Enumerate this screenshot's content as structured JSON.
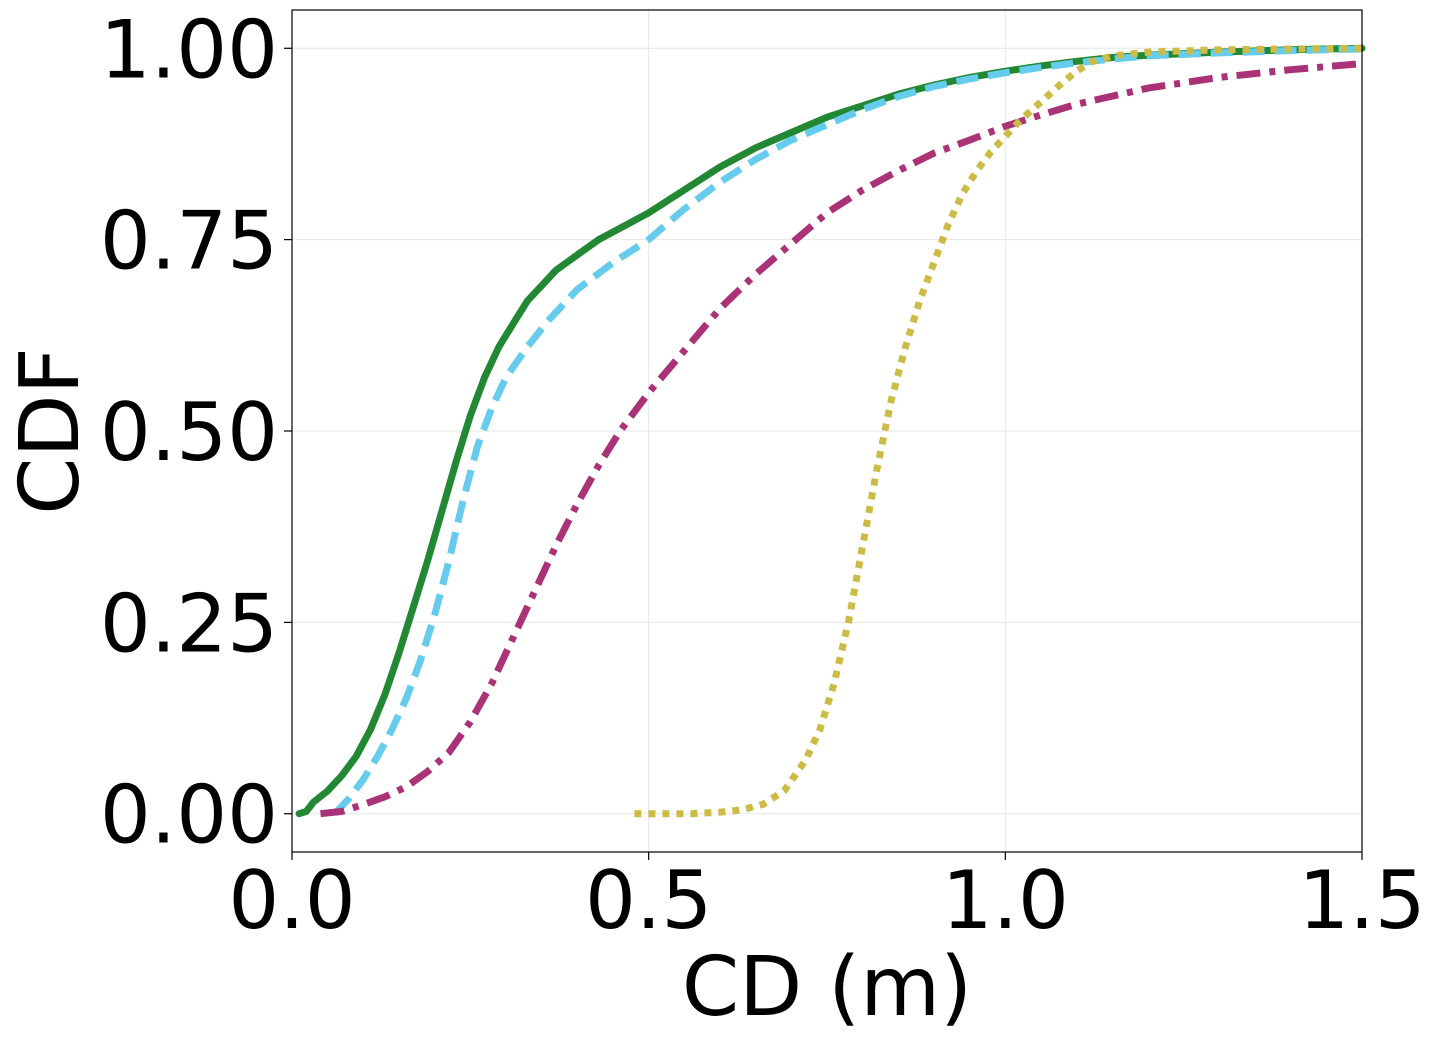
{
  "chart_data": {
    "type": "line",
    "title": "",
    "xlabel": "CD (m)",
    "ylabel": "CDF",
    "xlim": [
      0.0,
      1.5
    ],
    "ylim": [
      -0.05,
      1.05
    ],
    "xticks": [
      0.0,
      0.5,
      1.0,
      1.5
    ],
    "xtick_labels": [
      "0.0",
      "0.5",
      "1.0",
      "1.5"
    ],
    "yticks": [
      0.0,
      0.25,
      0.5,
      0.75,
      1.0
    ],
    "ytick_labels": [
      "0.00",
      "0.25",
      "0.50",
      "0.75",
      "1.00"
    ],
    "grid": true,
    "legend": "none",
    "series": [
      {
        "name": "solid-green",
        "color": "#228833",
        "style": "solid",
        "x": [
          0.01,
          0.02,
          0.03,
          0.05,
          0.07,
          0.09,
          0.11,
          0.13,
          0.15,
          0.17,
          0.19,
          0.21,
          0.23,
          0.25,
          0.27,
          0.29,
          0.31,
          0.33,
          0.35,
          0.37,
          0.4,
          0.43,
          0.46,
          0.5,
          0.55,
          0.6,
          0.65,
          0.7,
          0.75,
          0.8,
          0.85,
          0.9,
          0.95,
          1.0,
          1.05,
          1.1,
          1.15,
          1.2,
          1.3,
          1.4,
          1.5
        ],
        "y": [
          0.0,
          0.003,
          0.015,
          0.03,
          0.05,
          0.075,
          0.11,
          0.155,
          0.21,
          0.27,
          0.33,
          0.395,
          0.46,
          0.52,
          0.57,
          0.61,
          0.64,
          0.67,
          0.69,
          0.71,
          0.73,
          0.75,
          0.765,
          0.785,
          0.815,
          0.845,
          0.87,
          0.89,
          0.91,
          0.925,
          0.94,
          0.952,
          0.962,
          0.97,
          0.977,
          0.983,
          0.988,
          0.991,
          0.995,
          0.998,
          1.0
        ]
      },
      {
        "name": "dashed-cyan",
        "color": "#66CCEE",
        "style": "dashed",
        "x": [
          0.06,
          0.08,
          0.1,
          0.12,
          0.14,
          0.16,
          0.18,
          0.2,
          0.22,
          0.24,
          0.26,
          0.28,
          0.3,
          0.33,
          0.36,
          0.4,
          0.45,
          0.5,
          0.55,
          0.6,
          0.65,
          0.7,
          0.75,
          0.8,
          0.85,
          0.9,
          0.95,
          1.0,
          1.05,
          1.1,
          1.15,
          1.2,
          1.3,
          1.4,
          1.5
        ],
        "y": [
          0.0,
          0.02,
          0.045,
          0.075,
          0.11,
          0.15,
          0.2,
          0.26,
          0.33,
          0.41,
          0.48,
          0.53,
          0.57,
          0.61,
          0.645,
          0.685,
          0.72,
          0.75,
          0.79,
          0.825,
          0.855,
          0.88,
          0.9,
          0.92,
          0.937,
          0.95,
          0.96,
          0.968,
          0.975,
          0.981,
          0.986,
          0.99,
          0.994,
          0.997,
          0.999
        ]
      },
      {
        "name": "dashdot-magenta",
        "color": "#AA3377",
        "style": "dashdot",
        "x": [
          0.04,
          0.07,
          0.1,
          0.13,
          0.16,
          0.19,
          0.22,
          0.25,
          0.28,
          0.31,
          0.34,
          0.37,
          0.4,
          0.43,
          0.46,
          0.5,
          0.55,
          0.6,
          0.65,
          0.7,
          0.75,
          0.8,
          0.85,
          0.9,
          0.95,
          1.0,
          1.05,
          1.1,
          1.2,
          1.3,
          1.4,
          1.5
        ],
        "y": [
          0.0,
          0.003,
          0.012,
          0.022,
          0.035,
          0.055,
          0.08,
          0.12,
          0.17,
          0.23,
          0.29,
          0.35,
          0.405,
          0.455,
          0.5,
          0.55,
          0.605,
          0.66,
          0.705,
          0.745,
          0.785,
          0.815,
          0.84,
          0.863,
          0.88,
          0.898,
          0.913,
          0.927,
          0.948,
          0.962,
          0.972,
          0.98
        ]
      },
      {
        "name": "dotted-olive",
        "color": "#CCBB44",
        "style": "dotted",
        "x": [
          0.48,
          0.52,
          0.56,
          0.6,
          0.63,
          0.66,
          0.69,
          0.72,
          0.74,
          0.76,
          0.78,
          0.8,
          0.82,
          0.84,
          0.86,
          0.88,
          0.9,
          0.92,
          0.94,
          0.96,
          0.98,
          1.0,
          1.02,
          1.05,
          1.08,
          1.1,
          1.12,
          1.15,
          1.2,
          1.3,
          1.4,
          1.5
        ],
        "y": [
          0.0,
          0.0,
          0.0,
          0.002,
          0.005,
          0.012,
          0.03,
          0.07,
          0.11,
          0.17,
          0.25,
          0.35,
          0.45,
          0.54,
          0.61,
          0.67,
          0.72,
          0.77,
          0.81,
          0.84,
          0.865,
          0.885,
          0.905,
          0.93,
          0.955,
          0.97,
          0.982,
          0.99,
          0.995,
          0.998,
          0.999,
          1.0
        ]
      }
    ]
  }
}
